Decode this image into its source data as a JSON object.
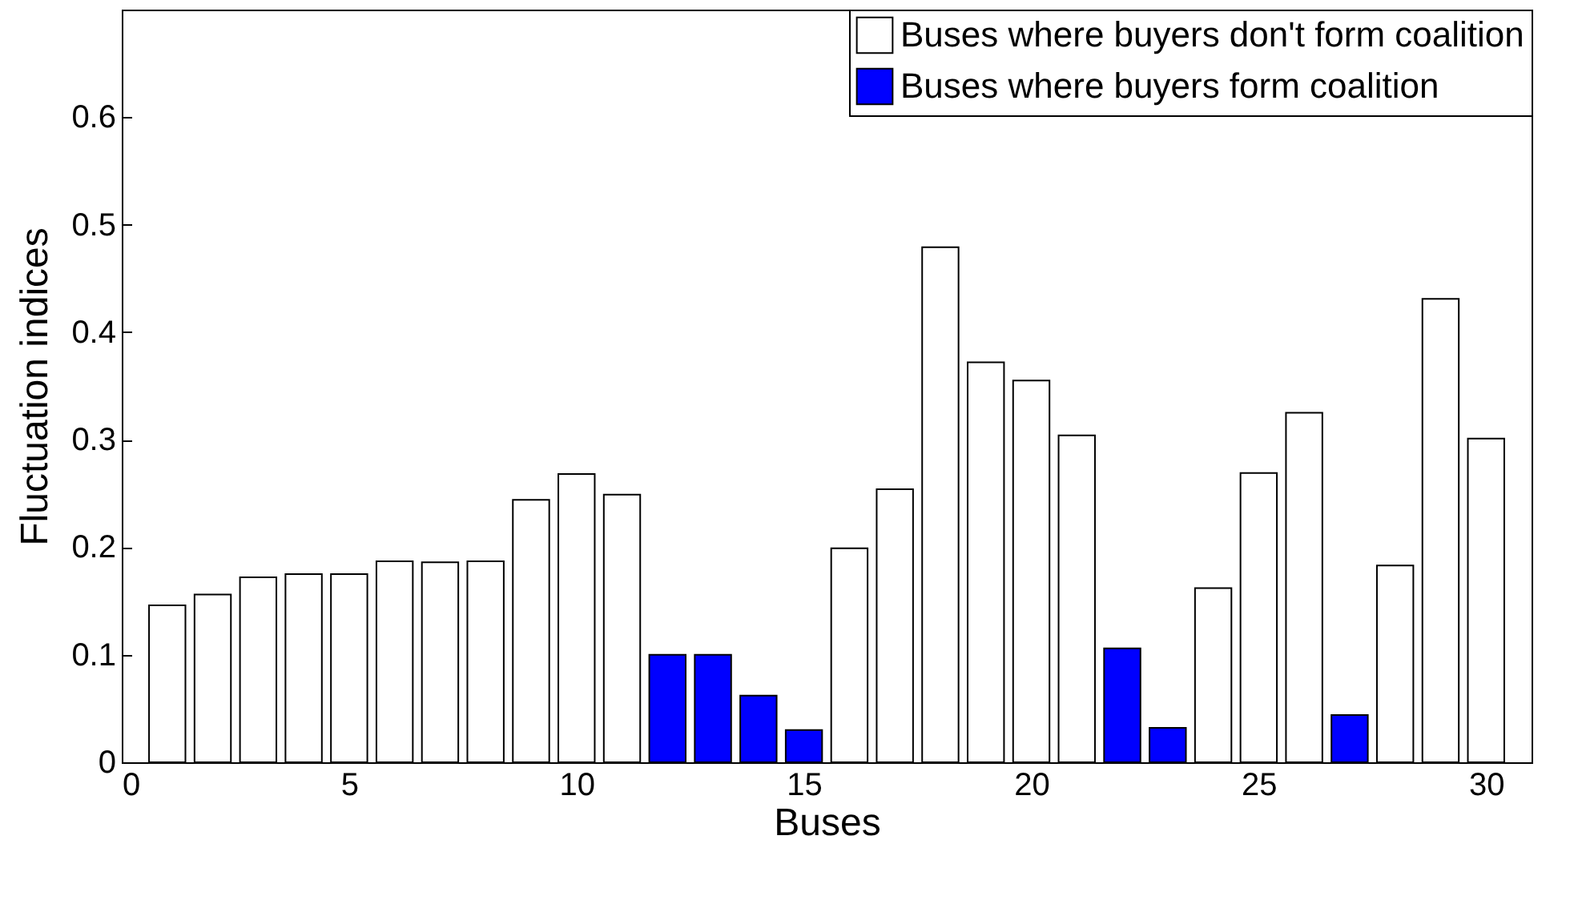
{
  "chart_data": {
    "type": "bar",
    "xlabel": "Buses",
    "ylabel": "Fluctuation indices",
    "x": [
      1,
      2,
      3,
      4,
      5,
      6,
      7,
      8,
      9,
      10,
      11,
      12,
      13,
      14,
      15,
      16,
      17,
      18,
      19,
      20,
      21,
      22,
      23,
      24,
      25,
      26,
      27,
      28,
      29,
      30
    ],
    "series": [
      {
        "name": "Buses where buyers don't form coalition",
        "color": "#ffffff",
        "values": [
          0.146,
          0.156,
          0.172,
          0.175,
          0.175,
          0.187,
          0.186,
          0.187,
          0.244,
          0.268,
          0.249,
          null,
          null,
          null,
          null,
          0.199,
          0.254,
          0.479,
          0.372,
          0.355,
          0.304,
          null,
          null,
          0.162,
          0.269,
          0.325,
          null,
          0.183,
          0.431,
          0.301
        ]
      },
      {
        "name": "Buses where buyers form coalition",
        "color": "#0000ff",
        "values": [
          null,
          null,
          null,
          null,
          null,
          null,
          null,
          null,
          null,
          null,
          null,
          0.1,
          0.1,
          0.062,
          0.03,
          null,
          null,
          null,
          null,
          null,
          null,
          0.106,
          0.032,
          null,
          null,
          null,
          0.044,
          null,
          null,
          null
        ]
      }
    ],
    "xlim": [
      0,
      31
    ],
    "xticks": [
      0,
      5,
      10,
      15,
      20,
      25,
      30
    ],
    "ylim": [
      0,
      0.7
    ],
    "yticks": [
      0,
      0.1,
      0.2,
      0.3,
      0.4,
      0.5,
      0.6
    ],
    "grid": false,
    "legend": "top right"
  }
}
